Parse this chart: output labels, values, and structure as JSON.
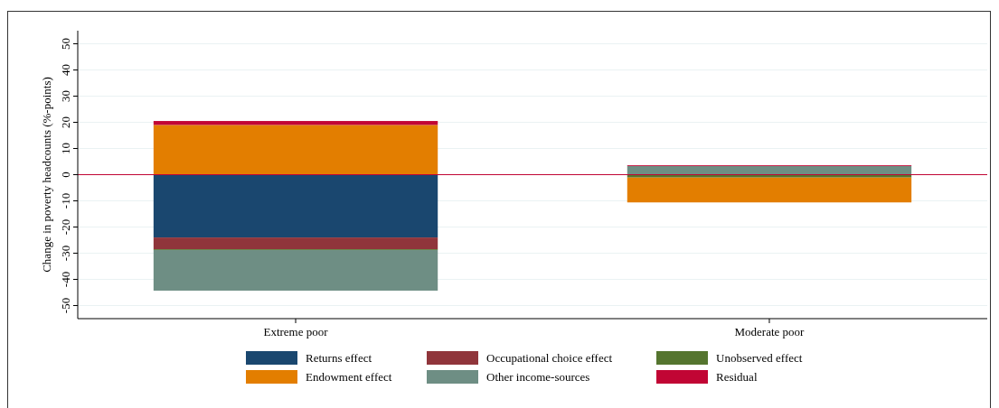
{
  "chart_data": {
    "type": "bar",
    "stacked": true,
    "ylabel": "Change in poverty headcounts (%-points)",
    "categories": [
      "Extreme poor",
      "Moderate poor"
    ],
    "series": [
      {
        "name": "Returns effect",
        "color": "#1a476f",
        "values": [
          -24,
          0
        ]
      },
      {
        "name": "Occupational choice effect",
        "color": "#90353b",
        "values": [
          -4.5,
          0
        ]
      },
      {
        "name": "Unobserved effect",
        "color": "#55752f",
        "values": [
          -0.3,
          -1.1
        ]
      },
      {
        "name": "Endowment effect",
        "color": "#e37e00",
        "values": [
          19,
          -9.5
        ]
      },
      {
        "name": "Other income-sources",
        "color": "#6e8e84",
        "values": [
          -15.5,
          3.3
        ]
      },
      {
        "name": "Residual",
        "color": "#c10534",
        "values": [
          1.5,
          0.3
        ]
      }
    ],
    "ylim": [
      -55,
      55
    ],
    "yticks": [
      -50,
      -40,
      -30,
      -20,
      -10,
      0,
      10,
      20,
      30,
      40,
      50
    ],
    "grid": "y",
    "legend": "bottom",
    "ref_lines": [
      {
        "axis": "y",
        "value": 0,
        "color": "#c10534"
      }
    ]
  }
}
